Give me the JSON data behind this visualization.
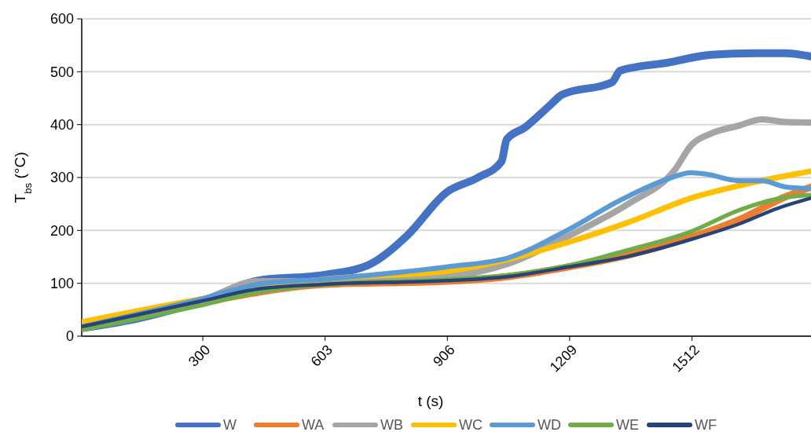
{
  "chart_data": {
    "type": "line",
    "xlabel": "t (s)",
    "ylabel": "T$_{bs}$ (°C)",
    "xlim": [
      0,
      1807
    ],
    "xticks": [
      300,
      603,
      906,
      1209,
      1512
    ],
    "ylim": [
      0,
      600
    ],
    "yticks": [
      0,
      100,
      200,
      300,
      400,
      500,
      600
    ],
    "grid": "y",
    "legend": "bottom",
    "line_style": "solid",
    "series": [
      {
        "name": "W",
        "color": "#4472c4",
        "x": [
          0,
          142,
          300,
          435,
          603,
          709,
          806,
          904,
          982,
          1040,
          1053,
          1099,
          1158,
          1191,
          1314,
          1334,
          1451,
          1559,
          1666,
          1744,
          1807
        ],
        "values": [
          15,
          34,
          67,
          105,
          116,
          134,
          190,
          272,
          300,
          330,
          372,
          395,
          435,
          457,
          480,
          502,
          517,
          532,
          535,
          535,
          529
        ]
      },
      {
        "name": "WA",
        "color": "#ed7d31",
        "x": [
          0,
          300,
          603,
          904,
          1060,
          1207,
          1354,
          1510,
          1628,
          1745,
          1807
        ],
        "values": [
          15,
          64,
          98,
          104,
          113,
          131,
          153,
          187,
          220,
          264,
          282
        ]
      },
      {
        "name": "WB",
        "color": "#a5a5a5",
        "x": [
          0,
          300,
          435,
          603,
          904,
          1060,
          1207,
          1354,
          1471,
          1510,
          1559,
          1628,
          1686,
          1745,
          1807
        ],
        "values": [
          15,
          67,
          104,
          104,
          113,
          138,
          190,
          250,
          316,
          361,
          383,
          398,
          410,
          405,
          404
        ]
      },
      {
        "name": "WC",
        "color": "#ffc000",
        "x": [
          0,
          300,
          603,
          904,
          1060,
          1207,
          1354,
          1510,
          1666,
          1807
        ],
        "values": [
          27,
          71,
          108,
          123,
          146,
          178,
          215,
          261,
          291,
          312
        ]
      },
      {
        "name": "WD",
        "color": "#5b9bd5",
        "x": [
          0,
          300,
          435,
          603,
          904,
          1060,
          1207,
          1334,
          1451,
          1510,
          1549,
          1628,
          1686,
          1745,
          1807
        ],
        "values": [
          18,
          71,
          98,
          108,
          131,
          149,
          202,
          257,
          297,
          309,
          306,
          294,
          294,
          282,
          279
        ]
      },
      {
        "name": "WE",
        "color": "#70ad47",
        "x": [
          0,
          300,
          435,
          603,
          904,
          1060,
          1207,
          1354,
          1510,
          1628,
          1725,
          1807
        ],
        "values": [
          12,
          59,
          83,
          98,
          107,
          116,
          134,
          163,
          198,
          238,
          260,
          267
        ]
      },
      {
        "name": "WF",
        "color": "#264478",
        "x": [
          0,
          300,
          435,
          603,
          904,
          1060,
          1207,
          1354,
          1510,
          1628,
          1725,
          1807
        ],
        "values": [
          18,
          67,
          89,
          98,
          105,
          113,
          131,
          151,
          183,
          212,
          242,
          261
        ]
      }
    ]
  }
}
